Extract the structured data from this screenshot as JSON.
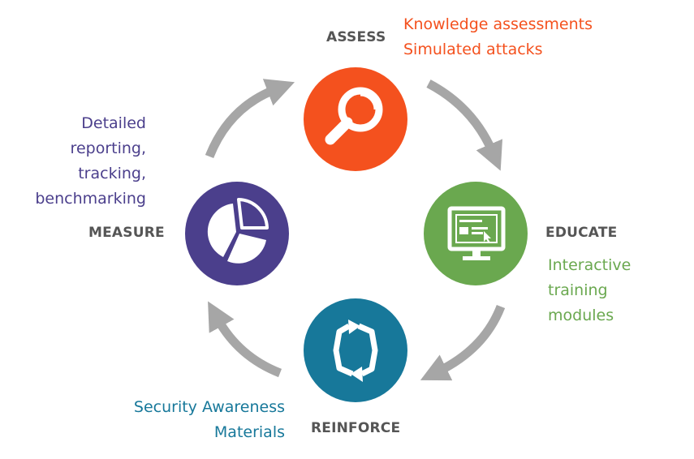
{
  "colors": {
    "assess": "#f4511e",
    "educate": "#6aa84f",
    "reinforce": "#17789a",
    "measure": "#4b3f8c",
    "arrow": "#a6a6a6",
    "label": "#555555"
  },
  "stages": {
    "assess": {
      "label": "ASSESS",
      "icon": "magnifier-icon",
      "details": [
        "Knowledge assessments",
        "Simulated attacks"
      ]
    },
    "educate": {
      "label": "EDUCATE",
      "icon": "monitor-icon",
      "details": [
        "Interactive",
        "training",
        "modules"
      ]
    },
    "reinforce": {
      "label": "REINFORCE",
      "icon": "cycle-icon",
      "details": [
        "Security Awareness",
        "Materials"
      ]
    },
    "measure": {
      "label": "MEASURE",
      "icon": "pie-chart-icon",
      "details": [
        "Detailed",
        "reporting,",
        "tracking,",
        "benchmarking"
      ]
    }
  }
}
